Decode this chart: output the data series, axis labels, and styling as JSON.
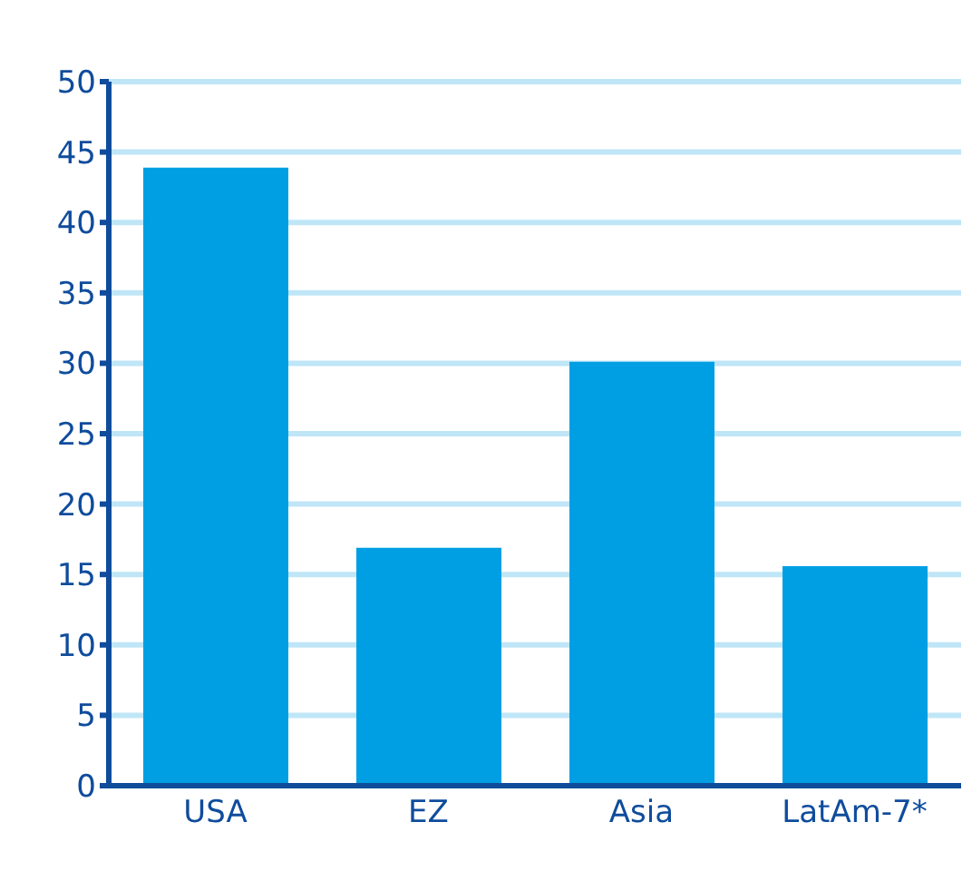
{
  "chart_data": {
    "type": "bar",
    "categories": [
      "USA",
      "EZ",
      "Asia",
      "LatAm-7*"
    ],
    "values": [
      43.9,
      16.9,
      30.1,
      15.6
    ],
    "color": "#009fe3",
    "ylim": [
      0,
      50
    ],
    "yticks": [
      0,
      5,
      10,
      15,
      20,
      25,
      30,
      35,
      40,
      45,
      50
    ],
    "grid": "y"
  }
}
